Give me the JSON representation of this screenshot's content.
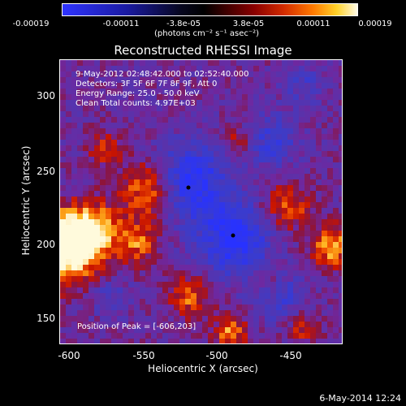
{
  "colorbar": {
    "ticks": [
      "-0.00019",
      "-0.00011",
      "-3.8e-05",
      "3.8e-05",
      "0.00011",
      "0.00019"
    ],
    "unit_label": "(photons cm⁻² s⁻¹ asec⁻²)"
  },
  "title": "Reconstructed RHESSI Image",
  "info": {
    "time": "9-May-2012 02:48:42.000 to 02:52:40.000",
    "detectors": "Detectors: 3F 5F 6F 7F 8F 9F, Att 0",
    "energy": "Energy Range: 25.0 - 50.0 keV",
    "clean": "Clean     Total counts: 4.97E+03",
    "peak": "Position of Peak = [-606,203]"
  },
  "axes": {
    "xlabel": "Heliocentric X (arcsec)",
    "ylabel": "Heliocentric Y (arcsec)",
    "xticks": [
      "-600",
      "-550",
      "-500",
      "-450"
    ],
    "yticks": [
      "300",
      "250",
      "200",
      "150"
    ]
  },
  "footer_date": "6-May-2014 12:24"
}
